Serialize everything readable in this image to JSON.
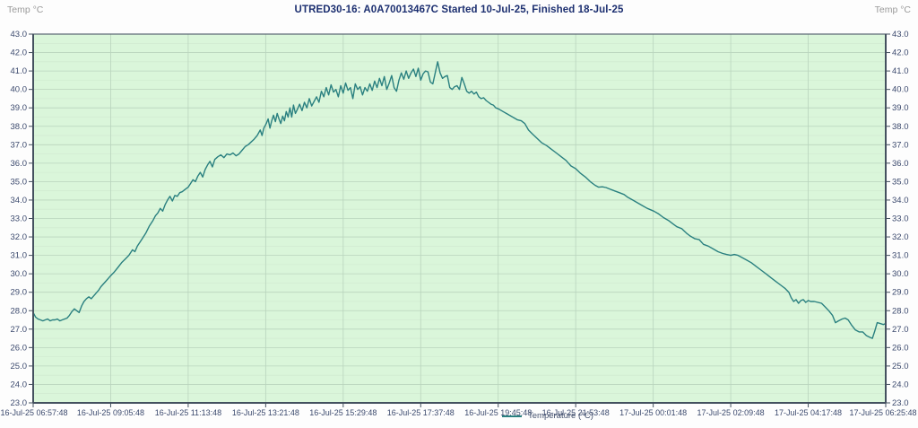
{
  "header": {
    "left_label": "Temp °C",
    "title": "UTRED30-16: A0A70013467C Started 10-Jul-25, Finished 18-Jul-25",
    "right_label": "Temp °C"
  },
  "legend": {
    "label": "Temperature (°C)"
  },
  "colors": {
    "plot_background": "#daf6da",
    "grid_major": "#b9d4bd",
    "grid_minor": "#cfe8cf",
    "plot_border": "#5a6672",
    "axis_line": "#44515f",
    "series_line": "#2a8080",
    "tick_label": "#3c4a6e",
    "title_text": "#1c2f70",
    "corner_label": "#9a9a9a"
  },
  "chart_data": {
    "type": "line",
    "title": "UTRED30-16: A0A70013467C Started 10-Jul-25, Finished 18-Jul-25",
    "ylabel_left": "Temp °C",
    "ylabel_right": "Temp °C",
    "ylim": [
      23.0,
      43.0
    ],
    "y_tick_step": 1.0,
    "y_ticks": [
      "43.0",
      "42.0",
      "41.0",
      "40.0",
      "39.0",
      "38.0",
      "37.0",
      "36.0",
      "35.0",
      "34.0",
      "33.0",
      "32.0",
      "31.0",
      "30.0",
      "29.0",
      "28.0",
      "27.0",
      "26.0",
      "25.0",
      "24.0",
      "23.0"
    ],
    "x_ticks": [
      "16-Jul-25 06:57:48",
      "16-Jul-25 09:05:48",
      "16-Jul-25 11:13:48",
      "16-Jul-25 13:21:48",
      "16-Jul-25 15:29:48",
      "16-Jul-25 17:37:48",
      "16-Jul-25 19:45:48",
      "16-Jul-25 21:53:48",
      "17-Jul-25 00:01:48",
      "17-Jul-25 02:09:48",
      "17-Jul-25 04:17:48",
      "17-Jul-25 06:25:48"
    ],
    "x_range_minutes": [
      0,
      1408
    ],
    "x_tick_interval_minutes": 128,
    "grid": "major horizontal and vertical, faint minor horizontal at 0.5",
    "legend_position": "bottom-center",
    "series": [
      {
        "name": "Temperature (°C)",
        "color": "#2a8080",
        "points": [
          [
            0,
            27.9
          ],
          [
            4,
            27.65
          ],
          [
            8,
            27.55
          ],
          [
            12,
            27.5
          ],
          [
            16,
            27.45
          ],
          [
            20,
            27.5
          ],
          [
            24,
            27.55
          ],
          [
            28,
            27.45
          ],
          [
            32,
            27.5
          ],
          [
            36,
            27.5
          ],
          [
            40,
            27.55
          ],
          [
            44,
            27.45
          ],
          [
            48,
            27.5
          ],
          [
            52,
            27.55
          ],
          [
            56,
            27.6
          ],
          [
            60,
            27.75
          ],
          [
            64,
            27.95
          ],
          [
            68,
            28.1
          ],
          [
            72,
            28.0
          ],
          [
            76,
            27.9
          ],
          [
            80,
            28.25
          ],
          [
            84,
            28.5
          ],
          [
            88,
            28.65
          ],
          [
            92,
            28.75
          ],
          [
            96,
            28.65
          ],
          [
            100,
            28.8
          ],
          [
            104,
            28.95
          ],
          [
            108,
            29.1
          ],
          [
            112,
            29.3
          ],
          [
            116,
            29.45
          ],
          [
            120,
            29.6
          ],
          [
            124,
            29.75
          ],
          [
            128,
            29.9
          ],
          [
            134,
            30.1
          ],
          [
            140,
            30.35
          ],
          [
            146,
            30.6
          ],
          [
            152,
            30.8
          ],
          [
            158,
            31.0
          ],
          [
            164,
            31.3
          ],
          [
            168,
            31.2
          ],
          [
            172,
            31.5
          ],
          [
            176,
            31.7
          ],
          [
            180,
            31.9
          ],
          [
            186,
            32.2
          ],
          [
            192,
            32.6
          ],
          [
            198,
            32.9
          ],
          [
            202,
            33.15
          ],
          [
            206,
            33.3
          ],
          [
            210,
            33.55
          ],
          [
            214,
            33.4
          ],
          [
            218,
            33.75
          ],
          [
            222,
            34.0
          ],
          [
            226,
            34.2
          ],
          [
            230,
            33.95
          ],
          [
            234,
            34.25
          ],
          [
            238,
            34.2
          ],
          [
            242,
            34.4
          ],
          [
            246,
            34.45
          ],
          [
            250,
            34.55
          ],
          [
            256,
            34.7
          ],
          [
            260,
            34.9
          ],
          [
            264,
            35.1
          ],
          [
            268,
            35.0
          ],
          [
            272,
            35.3
          ],
          [
            276,
            35.5
          ],
          [
            280,
            35.25
          ],
          [
            284,
            35.65
          ],
          [
            288,
            35.9
          ],
          [
            292,
            36.1
          ],
          [
            296,
            35.8
          ],
          [
            300,
            36.2
          ],
          [
            305,
            36.35
          ],
          [
            310,
            36.45
          ],
          [
            315,
            36.3
          ],
          [
            320,
            36.5
          ],
          [
            325,
            36.45
          ],
          [
            330,
            36.55
          ],
          [
            335,
            36.4
          ],
          [
            340,
            36.5
          ],
          [
            345,
            36.7
          ],
          [
            350,
            36.9
          ],
          [
            355,
            37.0
          ],
          [
            360,
            37.15
          ],
          [
            365,
            37.3
          ],
          [
            370,
            37.5
          ],
          [
            375,
            37.8
          ],
          [
            378,
            37.5
          ],
          [
            381,
            37.9
          ],
          [
            385,
            38.15
          ],
          [
            388,
            38.4
          ],
          [
            391,
            37.9
          ],
          [
            394,
            38.3
          ],
          [
            397,
            38.6
          ],
          [
            400,
            38.25
          ],
          [
            403,
            38.7
          ],
          [
            406,
            38.4
          ],
          [
            409,
            38.15
          ],
          [
            412,
            38.55
          ],
          [
            415,
            38.3
          ],
          [
            418,
            38.8
          ],
          [
            421,
            38.5
          ],
          [
            424,
            39.0
          ],
          [
            427,
            38.5
          ],
          [
            430,
            39.15
          ],
          [
            433,
            38.7
          ],
          [
            436,
            38.9
          ],
          [
            440,
            39.2
          ],
          [
            444,
            38.85
          ],
          [
            448,
            39.3
          ],
          [
            452,
            39.0
          ],
          [
            456,
            39.5
          ],
          [
            460,
            39.1
          ],
          [
            464,
            39.35
          ],
          [
            468,
            39.6
          ],
          [
            472,
            39.3
          ],
          [
            476,
            39.9
          ],
          [
            480,
            39.6
          ],
          [
            484,
            40.1
          ],
          [
            488,
            39.7
          ],
          [
            492,
            40.25
          ],
          [
            496,
            39.85
          ],
          [
            500,
            40.0
          ],
          [
            504,
            39.6
          ],
          [
            508,
            40.2
          ],
          [
            512,
            39.8
          ],
          [
            516,
            40.35
          ],
          [
            520,
            39.95
          ],
          [
            524,
            40.1
          ],
          [
            528,
            39.5
          ],
          [
            532,
            40.3
          ],
          [
            536,
            40.0
          ],
          [
            540,
            40.15
          ],
          [
            544,
            39.7
          ],
          [
            548,
            40.1
          ],
          [
            552,
            39.9
          ],
          [
            556,
            40.3
          ],
          [
            560,
            39.95
          ],
          [
            564,
            40.45
          ],
          [
            568,
            40.1
          ],
          [
            572,
            40.6
          ],
          [
            576,
            40.2
          ],
          [
            580,
            40.7
          ],
          [
            584,
            40.0
          ],
          [
            588,
            40.35
          ],
          [
            592,
            40.75
          ],
          [
            596,
            40.1
          ],
          [
            600,
            39.9
          ],
          [
            604,
            40.5
          ],
          [
            608,
            40.9
          ],
          [
            612,
            40.55
          ],
          [
            616,
            41.0
          ],
          [
            620,
            40.6
          ],
          [
            624,
            40.9
          ],
          [
            628,
            41.1
          ],
          [
            632,
            40.7
          ],
          [
            636,
            41.15
          ],
          [
            640,
            40.5
          ],
          [
            644,
            40.85
          ],
          [
            648,
            41.0
          ],
          [
            652,
            40.95
          ],
          [
            656,
            40.4
          ],
          [
            660,
            40.3
          ],
          [
            664,
            40.9
          ],
          [
            668,
            41.5
          ],
          [
            672,
            40.9
          ],
          [
            676,
            40.6
          ],
          [
            680,
            40.7
          ],
          [
            684,
            40.75
          ],
          [
            688,
            40.1
          ],
          [
            692,
            40.0
          ],
          [
            696,
            40.15
          ],
          [
            700,
            40.2
          ],
          [
            704,
            40.0
          ],
          [
            708,
            40.65
          ],
          [
            712,
            40.3
          ],
          [
            716,
            39.9
          ],
          [
            720,
            39.8
          ],
          [
            724,
            39.9
          ],
          [
            728,
            39.75
          ],
          [
            732,
            39.85
          ],
          [
            736,
            39.6
          ],
          [
            740,
            39.5
          ],
          [
            744,
            39.55
          ],
          [
            748,
            39.4
          ],
          [
            752,
            39.3
          ],
          [
            756,
            39.2
          ],
          [
            760,
            39.15
          ],
          [
            764,
            39.0
          ],
          [
            768,
            38.95
          ],
          [
            776,
            38.8
          ],
          [
            784,
            38.65
          ],
          [
            792,
            38.5
          ],
          [
            800,
            38.35
          ],
          [
            806,
            38.3
          ],
          [
            812,
            38.15
          ],
          [
            818,
            37.8
          ],
          [
            824,
            37.6
          ],
          [
            832,
            37.35
          ],
          [
            840,
            37.1
          ],
          [
            848,
            36.95
          ],
          [
            856,
            36.75
          ],
          [
            864,
            36.55
          ],
          [
            872,
            36.35
          ],
          [
            880,
            36.15
          ],
          [
            888,
            35.85
          ],
          [
            896,
            35.7
          ],
          [
            904,
            35.45
          ],
          [
            912,
            35.25
          ],
          [
            920,
            35.0
          ],
          [
            928,
            34.8
          ],
          [
            934,
            34.7
          ],
          [
            940,
            34.72
          ],
          [
            946,
            34.68
          ],
          [
            952,
            34.6
          ],
          [
            960,
            34.5
          ],
          [
            968,
            34.4
          ],
          [
            976,
            34.3
          ],
          [
            982,
            34.15
          ],
          [
            990,
            34.0
          ],
          [
            998,
            33.85
          ],
          [
            1006,
            33.7
          ],
          [
            1014,
            33.55
          ],
          [
            1025,
            33.4
          ],
          [
            1033,
            33.25
          ],
          [
            1041,
            33.05
          ],
          [
            1049,
            32.9
          ],
          [
            1057,
            32.7
          ],
          [
            1063,
            32.55
          ],
          [
            1071,
            32.45
          ],
          [
            1079,
            32.2
          ],
          [
            1085,
            32.05
          ],
          [
            1093,
            31.9
          ],
          [
            1100,
            31.85
          ],
          [
            1107,
            31.6
          ],
          [
            1115,
            31.5
          ],
          [
            1123,
            31.35
          ],
          [
            1131,
            31.2
          ],
          [
            1139,
            31.1
          ],
          [
            1145,
            31.05
          ],
          [
            1152,
            31.0
          ],
          [
            1158,
            31.05
          ],
          [
            1164,
            31.0
          ],
          [
            1170,
            30.9
          ],
          [
            1178,
            30.75
          ],
          [
            1186,
            30.6
          ],
          [
            1194,
            30.4
          ],
          [
            1202,
            30.2
          ],
          [
            1210,
            30.0
          ],
          [
            1218,
            29.8
          ],
          [
            1226,
            29.6
          ],
          [
            1234,
            29.4
          ],
          [
            1242,
            29.2
          ],
          [
            1248,
            29.0
          ],
          [
            1252,
            28.7
          ],
          [
            1256,
            28.5
          ],
          [
            1260,
            28.6
          ],
          [
            1264,
            28.4
          ],
          [
            1268,
            28.55
          ],
          [
            1272,
            28.6
          ],
          [
            1276,
            28.45
          ],
          [
            1280,
            28.55
          ],
          [
            1284,
            28.5
          ],
          [
            1290,
            28.5
          ],
          [
            1296,
            28.45
          ],
          [
            1302,
            28.4
          ],
          [
            1308,
            28.2
          ],
          [
            1314,
            28.0
          ],
          [
            1320,
            27.75
          ],
          [
            1325,
            27.35
          ],
          [
            1330,
            27.45
          ],
          [
            1336,
            27.55
          ],
          [
            1341,
            27.6
          ],
          [
            1346,
            27.5
          ],
          [
            1352,
            27.2
          ],
          [
            1358,
            26.95
          ],
          [
            1364,
            26.85
          ],
          [
            1370,
            26.85
          ],
          [
            1376,
            26.65
          ],
          [
            1382,
            26.55
          ],
          [
            1386,
            26.5
          ],
          [
            1390,
            26.9
          ],
          [
            1394,
            27.35
          ],
          [
            1399,
            27.3
          ],
          [
            1404,
            27.25
          ],
          [
            1408,
            27.3
          ]
        ]
      }
    ]
  }
}
